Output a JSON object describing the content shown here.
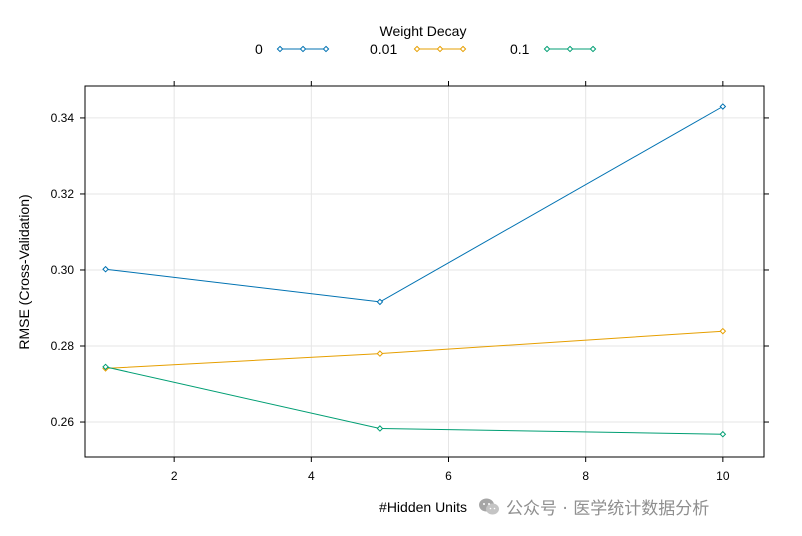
{
  "chart_data": {
    "type": "line",
    "legend_title": "Weight Decay",
    "legend_position": "top",
    "xlabel": "#Hidden Units",
    "ylabel": "RMSE (Cross-Validation)",
    "xlim": [
      0.7,
      10.6
    ],
    "ylim": [
      0.2508,
      0.3484
    ],
    "x_ticks": [
      2,
      4,
      6,
      8,
      10
    ],
    "y_ticks": [
      0.26,
      0.28,
      0.3,
      0.32,
      0.34
    ],
    "x_tick_labels": [
      "2",
      "4",
      "6",
      "8",
      "10"
    ],
    "y_tick_labels": [
      "0.26",
      "0.28",
      "0.30",
      "0.32",
      "0.34"
    ],
    "grid": true,
    "x": [
      1,
      5,
      10
    ],
    "series": [
      {
        "name": "0",
        "color": "#0072b2",
        "values": [
          0.3002,
          0.2916,
          0.343
        ]
      },
      {
        "name": "0.01",
        "color": "#e69f00",
        "values": [
          0.2741,
          0.278,
          0.2839
        ]
      },
      {
        "name": "0.1",
        "color": "#009e73",
        "values": [
          0.2745,
          0.2583,
          0.2568
        ]
      }
    ]
  },
  "watermark": {
    "text": "公众号 · 医学统计数据分析",
    "icon": "wechat-icon"
  }
}
